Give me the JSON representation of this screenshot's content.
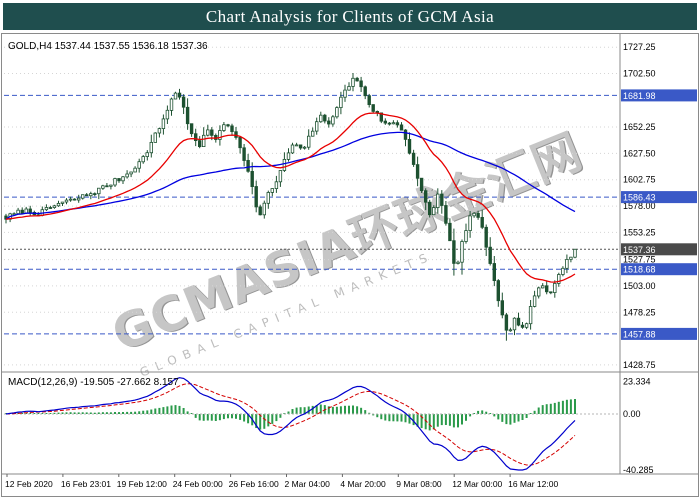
{
  "banner": {
    "title": "Chart Analysis for Clients of GCM Asia",
    "bg_color": "#1f4e4e",
    "text_color": "#ffffff"
  },
  "symbol_header": {
    "text": "GOLD,H4 1537.44 1537.55 1536.18 1537.36"
  },
  "watermark": {
    "main": "GCMASIA环球金汇网",
    "sub": "GLOBAL CAPITAL MARKETS"
  },
  "macd": {
    "label": "MACD(12,26,9) -19.505 -27.662 8.157"
  },
  "colors": {
    "bull": "#ffffff",
    "bear": "#1d5130",
    "candle_border": "#1d5130",
    "ma_fast": "#e80000",
    "ma_slow": "#0000e0",
    "level_line": "#3a59c7",
    "current_line": "#555555",
    "current_badge": "#4a4a4a",
    "histogram": "#2a9a4a",
    "macd_line": "#0000cc",
    "signal_line": "#d40000",
    "grid": "#d5d5d5",
    "frame": "#8a8a8a",
    "axis_text": "#000000"
  },
  "chart_data": {
    "type": "candlestick",
    "title": "Chart Analysis for Clients of GCM Asia",
    "symbol": "GOLD",
    "timeframe": "H4",
    "current_ohlc": {
      "open": 1537.44,
      "high": 1537.55,
      "low": 1536.18,
      "close": 1537.36
    },
    "current_price": 1537.36,
    "price_ticks": [
      "1727.25",
      "1702.50",
      "1652.25",
      "1627.50",
      "1602.75",
      "1578.00",
      "1553.25",
      "1527.75",
      "1503.00",
      "1478.25",
      "1428.75"
    ],
    "level_lines": [
      1681.98,
      1586.43,
      1518.68,
      1457.88
    ],
    "time_ticks": [
      "12 Feb 2020",
      "16 Feb 23:01",
      "19 Feb 12:00",
      "24 Feb 00:00",
      "26 Feb 16:00",
      "2 Mar 04:00",
      "4 Mar 20:00",
      "9 Mar 08:00",
      "12 Mar 00:00",
      "16 Mar 12:00"
    ],
    "y_range": [
      1424,
      1734
    ],
    "candle_count": 142,
    "price_path_anchors": [
      [
        0,
        1567
      ],
      [
        0.03,
        1574
      ],
      [
        0.06,
        1571
      ],
      [
        0.09,
        1580
      ],
      [
        0.12,
        1584
      ],
      [
        0.15,
        1590
      ],
      [
        0.18,
        1598
      ],
      [
        0.21,
        1607
      ],
      [
        0.24,
        1622
      ],
      [
        0.26,
        1642
      ],
      [
        0.28,
        1663
      ],
      [
        0.295,
        1686
      ],
      [
        0.31,
        1676
      ],
      [
        0.325,
        1645
      ],
      [
        0.34,
        1634
      ],
      [
        0.355,
        1650
      ],
      [
        0.37,
        1641
      ],
      [
        0.385,
        1656
      ],
      [
        0.4,
        1648
      ],
      [
        0.415,
        1630
      ],
      [
        0.43,
        1601
      ],
      [
        0.445,
        1567
      ],
      [
        0.46,
        1588
      ],
      [
        0.475,
        1601
      ],
      [
        0.49,
        1621
      ],
      [
        0.505,
        1637
      ],
      [
        0.52,
        1629
      ],
      [
        0.535,
        1645
      ],
      [
        0.55,
        1663
      ],
      [
        0.565,
        1654
      ],
      [
        0.58,
        1670
      ],
      [
        0.595,
        1685
      ],
      [
        0.61,
        1698
      ],
      [
        0.625,
        1690
      ],
      [
        0.64,
        1672
      ],
      [
        0.655,
        1662
      ],
      [
        0.67,
        1653
      ],
      [
        0.685,
        1658
      ],
      [
        0.7,
        1645
      ],
      [
        0.715,
        1620
      ],
      [
        0.73,
        1592
      ],
      [
        0.745,
        1568
      ],
      [
        0.76,
        1590
      ],
      [
        0.775,
        1560
      ],
      [
        0.79,
        1514
      ],
      [
        0.805,
        1552
      ],
      [
        0.82,
        1574
      ],
      [
        0.835,
        1560
      ],
      [
        0.85,
        1528
      ],
      [
        0.865,
        1488
      ],
      [
        0.88,
        1458
      ],
      [
        0.895,
        1472
      ],
      [
        0.91,
        1460
      ],
      [
        0.925,
        1487
      ],
      [
        0.94,
        1505
      ],
      [
        0.955,
        1495
      ],
      [
        0.97,
        1515
      ],
      [
        0.985,
        1526
      ],
      [
        1,
        1537.36
      ]
    ],
    "extremes": {
      "high": 1703.0,
      "high_t": 0.61,
      "low": 1451.5,
      "low_t": 0.88
    },
    "macd_panel": {
      "params": [
        12,
        26,
        9
      ],
      "macd": -19.505,
      "signal": -27.662,
      "histogram": 8.157,
      "axis_ticks": [
        "23.334",
        "0.00",
        "-40.285"
      ],
      "axis_max": 23.334,
      "axis_min": -40.285
    }
  }
}
